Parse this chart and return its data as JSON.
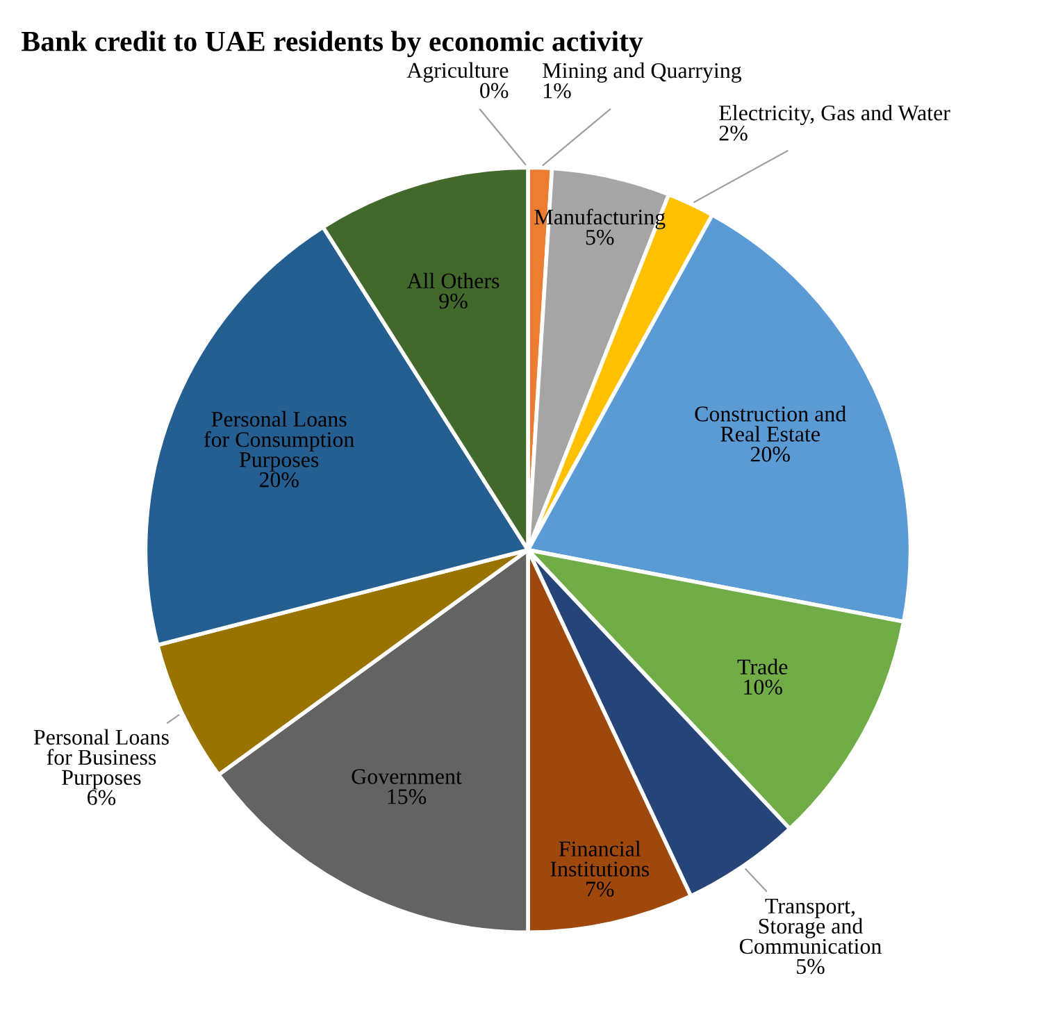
{
  "chart_data": {
    "type": "pie",
    "title": "Bank credit to UAE residents by economic activity",
    "categories": [
      "Agriculture",
      "Mining and Quarrying",
      "Manufacturing",
      "Electricity, Gas and Water",
      "Construction and Real Estate",
      "Trade",
      "Transport, Storage and Communication",
      "Financial Institutions",
      "Government",
      "Personal Loans for Business Purposes",
      "Personal Loans for Consumption Purposes",
      "All Others"
    ],
    "values": [
      0,
      1,
      5,
      2,
      20,
      10,
      5,
      7,
      15,
      6,
      20,
      9
    ],
    "colors": [
      "#4472c4",
      "#ed7d31",
      "#a5a5a5",
      "#ffc000",
      "#5b9bd5",
      "#70ad47",
      "#264478",
      "#9e480e",
      "#636363",
      "#997300",
      "#255e91",
      "#43682b"
    ],
    "value_labels": [
      "0%",
      "1%",
      "5%",
      "2%",
      "20%",
      "10%",
      "5%",
      "7%",
      "15%",
      "6%",
      "20%",
      "9%"
    ]
  }
}
